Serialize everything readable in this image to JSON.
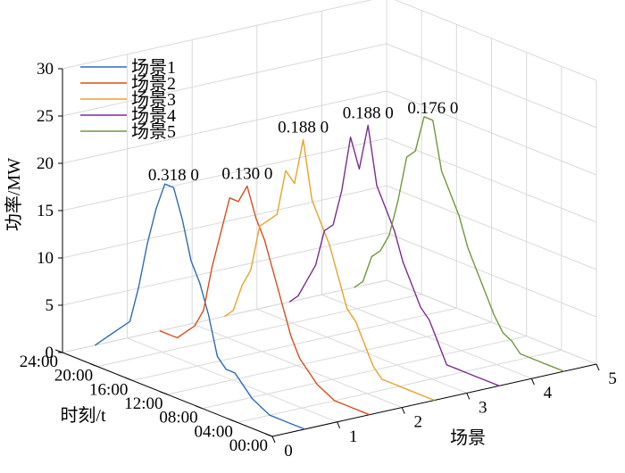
{
  "chart_data": {
    "type": "line",
    "projection": "3d",
    "zlabel": "功率/MW",
    "ylabel": "时刻/t",
    "xlabel": "场景",
    "zlim": [
      0,
      30
    ],
    "z_ticks": [
      "0",
      "5",
      "10",
      "15",
      "20",
      "25",
      "30"
    ],
    "time_ticks": [
      "00:00",
      "04:00",
      "08:00",
      "12:00",
      "16:00",
      "20:00",
      "24:00"
    ],
    "scene_ticks": [
      "0",
      "1",
      "2",
      "3",
      "4",
      "5"
    ],
    "grid": true,
    "legend_position": "top-left",
    "time_hours": [
      0,
      1,
      2,
      3,
      4,
      5,
      6,
      7,
      8,
      9,
      10,
      11,
      12,
      13,
      14,
      15,
      16,
      17,
      18,
      19,
      20,
      21,
      22,
      23,
      24
    ],
    "series": [
      {
        "name": "场景1",
        "color": "#2e6db4",
        "scene": 0.5,
        "annotation": "0.318 0",
        "values": [
          0,
          0,
          0,
          0,
          0,
          0.5,
          1,
          2,
          3,
          3,
          4,
          8,
          11,
          13,
          17,
          20,
          20,
          17,
          13,
          8,
          4,
          3,
          2,
          1,
          0
        ]
      },
      {
        "name": "场景2",
        "color": "#d2501e",
        "scene": 1.5,
        "annotation": "0.130 0",
        "values": [
          0,
          0,
          0,
          0,
          0,
          0.5,
          1,
          2,
          3,
          5,
          8,
          11,
          14,
          16,
          19,
          17,
          17,
          13,
          9,
          4,
          2,
          1,
          0,
          0,
          0
        ]
      },
      {
        "name": "场景3",
        "color": "#e6a42a",
        "scene": 2.5,
        "annotation": "0.188 0",
        "values": [
          0,
          0,
          0,
          0,
          0,
          0,
          0,
          1,
          3,
          5,
          6,
          9,
          12,
          14,
          16,
          22,
          17,
          18,
          13,
          12,
          11,
          6,
          4,
          1,
          0
        ]
      },
      {
        "name": "场景4",
        "color": "#7b2d8e",
        "scene": 3.5,
        "annotation": "0.188 0",
        "values": [
          0,
          0,
          0,
          0,
          0,
          0,
          0,
          2,
          4,
          5,
          7,
          9,
          12,
          14,
          16,
          22,
          17,
          20,
          14,
          10,
          9,
          5,
          3,
          1,
          0
        ]
      },
      {
        "name": "场景5",
        "color": "#6f9a3a",
        "scene": 4.5,
        "annotation": "0.176 0",
        "values": [
          0,
          0,
          0,
          0,
          0,
          0,
          1,
          1.5,
          3,
          5,
          7,
          9,
          12,
          14,
          16,
          21,
          21,
          17,
          16,
          11,
          7,
          5,
          4,
          1,
          0
        ]
      }
    ]
  }
}
